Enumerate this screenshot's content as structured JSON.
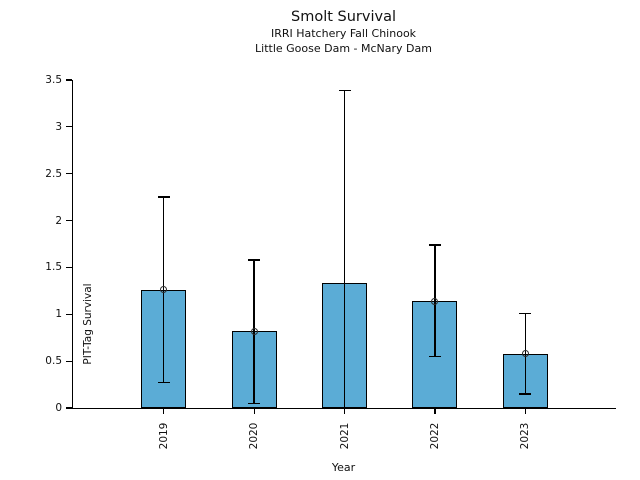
{
  "chart_data": {
    "type": "bar",
    "title": "Smolt Survival",
    "subtitle1": "IRRI Hatchery Fall Chinook",
    "subtitle2": "Little Goose Dam - McNary Dam",
    "xlabel": "Year",
    "ylabel": "PIT-Tag Survival",
    "ylim": [
      0,
      3.5
    ],
    "ytick_step": 0.5,
    "ytick_labels": [
      "0",
      "0.5",
      "1",
      "1.5",
      "2",
      "2.5",
      "3",
      "3.5"
    ],
    "categories": [
      "2019",
      "2020",
      "2021",
      "2022",
      "2023"
    ],
    "values": [
      1.26,
      0.82,
      1.33,
      1.14,
      0.58
    ],
    "error_low": [
      0.27,
      0.05,
      null,
      0.55,
      0.15
    ],
    "error_high": [
      2.25,
      1.58,
      3.39,
      1.74,
      1.01
    ],
    "point_markers": [
      true,
      true,
      false,
      true,
      true
    ],
    "bar_color": "#5BACD6",
    "bar_edge_color": "#000000",
    "error_color": "#000000",
    "marker_style": "open-circle",
    "grid": false,
    "legend": null,
    "x_tick_label_rotation_deg": 90
  }
}
